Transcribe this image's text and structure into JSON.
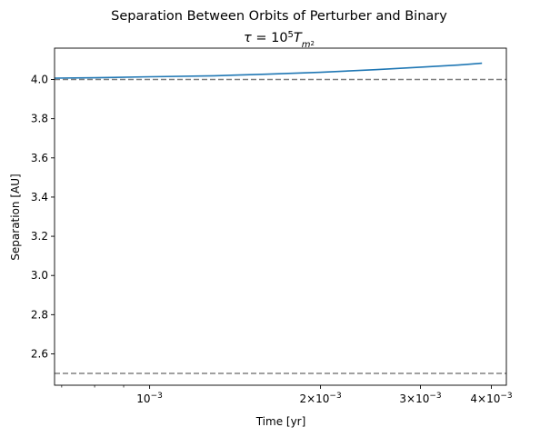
{
  "chart_data": {
    "type": "line",
    "title": "Separation Between Orbits of Perturber and Binary",
    "subtitle": {
      "tau": "τ",
      "equals": " = ",
      "base": "10",
      "exponent": "5",
      "T": "T",
      "sub_m": "m",
      "sub_2": "2"
    },
    "xlabel": "Time [yr]",
    "ylabel": "Separation [AU]",
    "x_scale": "log",
    "xlim": [
      0.00068,
      0.00425
    ],
    "ylim": [
      2.44,
      4.16
    ],
    "x_ticks": [
      {
        "value": 0.001,
        "mantissa": "",
        "base": "10",
        "exponent": "−3"
      },
      {
        "value": 0.002,
        "mantissa": "2×",
        "base": "10",
        "exponent": "−3"
      },
      {
        "value": 0.003,
        "mantissa": "3×",
        "base": "10",
        "exponent": "−3"
      },
      {
        "value": 0.004,
        "mantissa": "4×",
        "base": "10",
        "exponent": "−3"
      }
    ],
    "x_minor_ticks": [
      0.0007,
      0.0008,
      0.0009
    ],
    "y_ticks": [
      {
        "value": 2.6,
        "label": "2.6"
      },
      {
        "value": 2.8,
        "label": "2.8"
      },
      {
        "value": 3.0,
        "label": "3.0"
      },
      {
        "value": 3.2,
        "label": "3.2"
      },
      {
        "value": 3.4,
        "label": "3.4"
      },
      {
        "value": 3.6,
        "label": "3.6"
      },
      {
        "value": 3.8,
        "label": "3.8"
      },
      {
        "value": 4.0,
        "label": "4.0"
      }
    ],
    "grid": false,
    "series": [
      {
        "color": "#1f77b4",
        "x": [
          0.00068,
          0.0008,
          0.001,
          0.0013,
          0.0016,
          0.002,
          0.0025,
          0.003,
          0.0035,
          0.00385
        ],
        "y": [
          4.007,
          4.009,
          4.014,
          4.019,
          4.027,
          4.037,
          4.05,
          4.063,
          4.074,
          4.083
        ]
      }
    ],
    "reference_lines": [
      {
        "y": 4.0,
        "style": "dashed",
        "color": "#808080"
      },
      {
        "y": 2.5,
        "style": "dashed",
        "color": "#808080"
      }
    ]
  }
}
